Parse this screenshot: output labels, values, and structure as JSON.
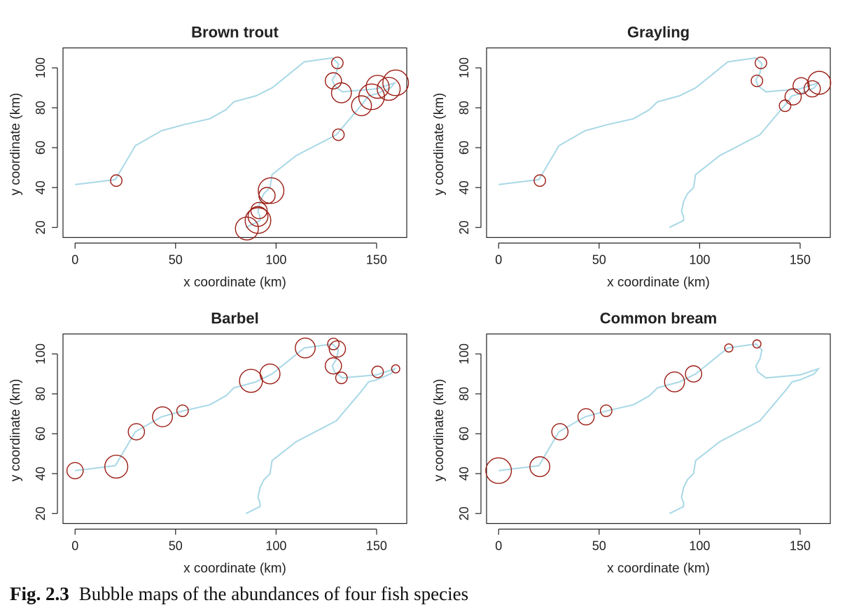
{
  "colors": {
    "river": "#a8d8e6",
    "bubble": "#9b1c14",
    "axis": "#222222",
    "text": "#222222"
  },
  "river_path": {
    "x": [
      0,
      20,
      30,
      43,
      54,
      67,
      75,
      79,
      90,
      98,
      114,
      128,
      131,
      130,
      128,
      129,
      133,
      150,
      159,
      157,
      150,
      146,
      143,
      130,
      110,
      98,
      97,
      94,
      92,
      91,
      92,
      92,
      85
    ],
    "y": [
      41.5,
      44,
      61,
      68.5,
      71.5,
      74.5,
      79,
      83,
      86,
      90,
      103,
      105,
      102,
      97.5,
      94,
      91,
      88,
      89.5,
      92.5,
      90,
      87,
      86,
      82,
      66.5,
      56,
      46.5,
      40,
      37,
      33,
      28,
      25.5,
      23.5,
      20
    ]
  },
  "chart_data": [
    {
      "type": "scatter",
      "title": "Brown trout",
      "xlabel": "x coordinate (km)",
      "ylabel": "y coordinate (km)",
      "xlim": [
        -6,
        165
      ],
      "ylim": [
        15,
        110
      ],
      "xticks": [
        "0",
        "50",
        "100",
        "150"
      ],
      "yticks": [
        "20",
        "40",
        "60",
        "80",
        "100"
      ],
      "points": [
        {
          "x": 20.5,
          "y": 43.5,
          "size": 1
        },
        {
          "x": 130.5,
          "y": 102.5,
          "size": 1
        },
        {
          "x": 128.5,
          "y": 93.5,
          "size": 2
        },
        {
          "x": 131,
          "y": 66.5,
          "size": 1
        },
        {
          "x": 132.5,
          "y": 87.5,
          "size": 3
        },
        {
          "x": 142.5,
          "y": 81,
          "size": 3
        },
        {
          "x": 147.5,
          "y": 85.5,
          "size": 5
        },
        {
          "x": 150.5,
          "y": 90.5,
          "size": 4
        },
        {
          "x": 156,
          "y": 89.5,
          "size": 4
        },
        {
          "x": 159.5,
          "y": 92.5,
          "size": 5
        },
        {
          "x": 97.5,
          "y": 38.5,
          "size": 5
        },
        {
          "x": 95.5,
          "y": 36,
          "size": 2
        },
        {
          "x": 91.5,
          "y": 28.5,
          "size": 2
        },
        {
          "x": 91,
          "y": 25.5,
          "size": 3
        },
        {
          "x": 91,
          "y": 23.5,
          "size": 5
        },
        {
          "x": 85.5,
          "y": 19.5,
          "size": 4
        }
      ]
    },
    {
      "type": "scatter",
      "title": "Grayling",
      "xlabel": "x coordinate (km)",
      "ylabel": "y coordinate (km)",
      "xlim": [
        -6,
        165
      ],
      "ylim": [
        15,
        110
      ],
      "xticks": [
        "0",
        "50",
        "100",
        "150"
      ],
      "yticks": [
        "20",
        "40",
        "60",
        "80",
        "100"
      ],
      "points": [
        {
          "x": 20.5,
          "y": 43.5,
          "size": 1
        },
        {
          "x": 130.5,
          "y": 102.5,
          "size": 1
        },
        {
          "x": 128.5,
          "y": 93.5,
          "size": 1
        },
        {
          "x": 142.5,
          "y": 81,
          "size": 1
        },
        {
          "x": 146.5,
          "y": 85.5,
          "size": 2
        },
        {
          "x": 150.5,
          "y": 91,
          "size": 2
        },
        {
          "x": 156,
          "y": 89.5,
          "size": 2
        },
        {
          "x": 159.5,
          "y": 92.5,
          "size": 4
        }
      ]
    },
    {
      "type": "scatter",
      "title": "Barbel",
      "xlabel": "x coordinate (km)",
      "ylabel": "y coordinate (km)",
      "xlim": [
        -6,
        165
      ],
      "ylim": [
        15,
        110
      ],
      "xticks": [
        "0",
        "50",
        "100",
        "150"
      ],
      "yticks": [
        "20",
        "40",
        "60",
        "80",
        "100"
      ],
      "points": [
        {
          "x": 0,
          "y": 41.5,
          "size": 2
        },
        {
          "x": 20.5,
          "y": 43.5,
          "size": 4
        },
        {
          "x": 30.5,
          "y": 61,
          "size": 2
        },
        {
          "x": 43.5,
          "y": 68.5,
          "size": 3
        },
        {
          "x": 53.5,
          "y": 71.5,
          "size": 1
        },
        {
          "x": 87.5,
          "y": 86.5,
          "size": 4
        },
        {
          "x": 97,
          "y": 90,
          "size": 3
        },
        {
          "x": 114.5,
          "y": 103,
          "size": 3
        },
        {
          "x": 128.5,
          "y": 105,
          "size": 1
        },
        {
          "x": 130.5,
          "y": 102.5,
          "size": 2
        },
        {
          "x": 128.5,
          "y": 94,
          "size": 2
        },
        {
          "x": 132.5,
          "y": 88,
          "size": 1
        },
        {
          "x": 150.5,
          "y": 91,
          "size": 1
        },
        {
          "x": 159.5,
          "y": 92.5,
          "size": 0.5
        }
      ]
    },
    {
      "type": "scatter",
      "title": "Common bream",
      "xlabel": "x coordinate (km)",
      "ylabel": "y coordinate (km)",
      "xlim": [
        -6,
        165
      ],
      "ylim": [
        15,
        110
      ],
      "xticks": [
        "0",
        "50",
        "100",
        "150"
      ],
      "yticks": [
        "20",
        "40",
        "60",
        "80",
        "100"
      ],
      "points": [
        {
          "x": 0,
          "y": 41.5,
          "size": 5
        },
        {
          "x": 20.5,
          "y": 43.5,
          "size": 3
        },
        {
          "x": 30.5,
          "y": 61,
          "size": 2
        },
        {
          "x": 43.5,
          "y": 68.5,
          "size": 2
        },
        {
          "x": 53.5,
          "y": 71.5,
          "size": 1
        },
        {
          "x": 87.5,
          "y": 86,
          "size": 3
        },
        {
          "x": 97,
          "y": 90,
          "size": 2
        },
        {
          "x": 114.5,
          "y": 103,
          "size": 0.5
        },
        {
          "x": 128.5,
          "y": 105,
          "size": 0.5
        }
      ]
    }
  ],
  "caption": {
    "label": "Fig. 2.3",
    "text": "Bubble maps of the abundances of four fish species"
  }
}
